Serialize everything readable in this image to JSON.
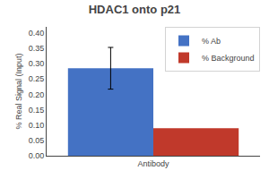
{
  "chart_data": {
    "type": "bar",
    "title": "HDAC1 onto p21",
    "ylabel": "% Real Signal (Input)",
    "categories": [
      "Antibody"
    ],
    "series": [
      {
        "name": "% Ab",
        "color": "#4472c4",
        "values": [
          0.285
        ],
        "errors": [
          0.068
        ]
      },
      {
        "name": "% Background",
        "color": "#c0392b",
        "values": [
          0.09
        ]
      }
    ],
    "ylim": [
      0.0,
      0.42
    ],
    "yticks": [
      {
        "value": 0,
        "label": "0.00"
      },
      0.05,
      {
        "value": 0.1,
        "label": "0.10"
      },
      0.15,
      {
        "value": 0.2,
        "label": "0.20"
      },
      0.25,
      {
        "value": 0.3,
        "label": "0.30"
      },
      0.35,
      {
        "value": 0.4,
        "label": "0.40"
      }
    ],
    "grid": false,
    "legend": "upper right"
  }
}
